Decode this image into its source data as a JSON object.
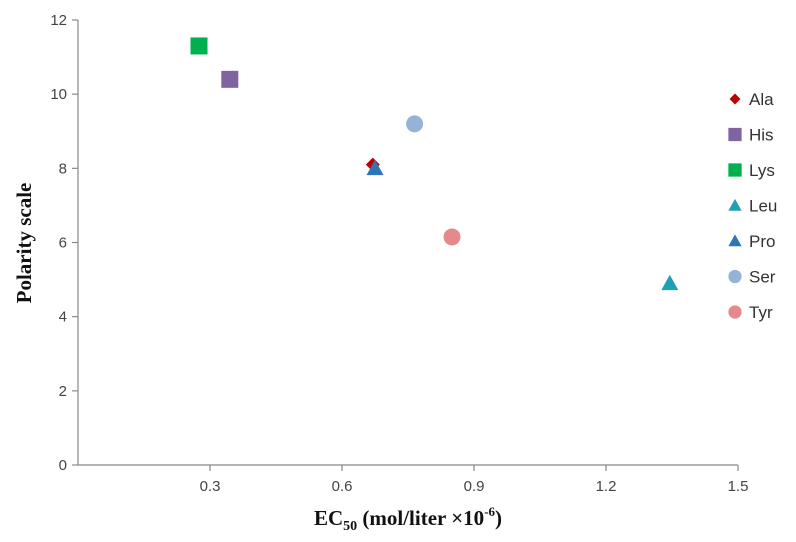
{
  "chart_data": {
    "type": "scatter",
    "title": "",
    "xlabel_main": "EC",
    "xlabel_sub": "50",
    "xlabel_rest": " (mol/liter ×10",
    "xlabel_sup": "-6",
    "xlabel_end": ")",
    "ylabel": "Polarity scale",
    "xlim": [
      0.0,
      1.5
    ],
    "ylim": [
      0,
      12
    ],
    "xticks": [
      0.3,
      0.6,
      0.9,
      1.2,
      1.5
    ],
    "xtick_labels": [
      "0.3",
      "0.6",
      "0.9",
      "1.2",
      "1.5"
    ],
    "yticks": [
      0,
      2,
      4,
      6,
      8,
      10,
      12
    ],
    "ytick_labels": [
      "0",
      "2",
      "4",
      "6",
      "8",
      "10",
      "12"
    ],
    "grid": false,
    "legend_position": "right",
    "series": [
      {
        "name": "Ala",
        "marker": "diamond",
        "color": "#c00000",
        "x": 0.67,
        "y": 8.1
      },
      {
        "name": "His",
        "marker": "square",
        "color": "#8064a2",
        "x": 0.345,
        "y": 10.4
      },
      {
        "name": "Lys",
        "marker": "square",
        "color": "#00b050",
        "x": 0.275,
        "y": 11.3
      },
      {
        "name": "Leu",
        "marker": "triangle",
        "color": "#1fa0b4",
        "x": 1.345,
        "y": 4.9
      },
      {
        "name": "Pro",
        "marker": "triangle",
        "color": "#2e75b6",
        "x": 0.675,
        "y": 8.0
      },
      {
        "name": "Ser",
        "marker": "circle",
        "color": "#95b3d7",
        "x": 0.765,
        "y": 9.2
      },
      {
        "name": "Tyr",
        "marker": "circle",
        "color": "#e6898b",
        "x": 0.85,
        "y": 6.15
      }
    ]
  }
}
